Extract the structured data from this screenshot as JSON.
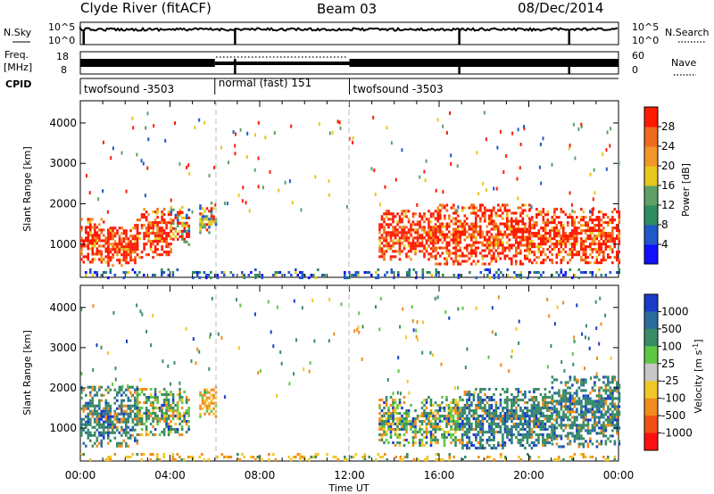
{
  "header": {
    "station": "Clyde River (fitACF)",
    "beam": "Beam 03",
    "date": "08/Dec/2014"
  },
  "nsky_panel": {
    "left_label": "N.Sky",
    "left_ticks": [
      "10^5",
      "10^0"
    ],
    "right_ticks": [
      "10^5",
      "10^0"
    ],
    "right_label": "N.Search"
  },
  "freq_panel": {
    "left_label_1": "Freq.",
    "left_label_2": "[MHz]",
    "left_ticks": [
      "18",
      "8"
    ],
    "right_ticks": [
      "60",
      "0"
    ],
    "right_label": "Nave"
  },
  "cpid": {
    "label": "CPID",
    "segments": [
      {
        "label": "twofsound -3503",
        "start_h": 0,
        "end_h": 6
      },
      {
        "label": "normal (fast) 151",
        "start_h": 6,
        "end_h": 12
      },
      {
        "label": "twofsound -3503",
        "start_h": 12,
        "end_h": 24
      }
    ]
  },
  "x_axis": {
    "label": "Time UT",
    "ticks": [
      "00:00",
      "04:00",
      "08:00",
      "12:00",
      "16:00",
      "20:00",
      "00:00"
    ],
    "range_h": [
      0,
      24
    ]
  },
  "y_axis": {
    "label": "Slant Range [km]",
    "ticks": [
      "1000",
      "2000",
      "3000",
      "4000"
    ],
    "range_km": [
      180,
      4550
    ]
  },
  "power_colorbar": {
    "label": "Power [dB]",
    "ticks": [
      "4",
      "8",
      "12",
      "16",
      "20",
      "24",
      "28"
    ],
    "colors": [
      "#1010ff",
      "#2058c8",
      "#2e8d5e",
      "#5fa066",
      "#e6c81e",
      "#f3962a",
      "#f06a1e",
      "#ff1a00"
    ]
  },
  "velocity_colorbar": {
    "label": "Velocity [m s",
    "label_sup": "-1",
    "label_end": "]",
    "ticks": [
      "1000",
      "500",
      "100",
      "25",
      "-25",
      "-100",
      "-500",
      "-1000"
    ],
    "colors": [
      "#1a3cc8",
      "#2b6e9e",
      "#3a8c64",
      "#5ec845",
      "#c8c8c8",
      "#f0c828",
      "#f08c1e",
      "#f05014",
      "#ff1010"
    ]
  },
  "chart_data": [
    {
      "type": "heatmap",
      "name": "power",
      "x_unit": "hours UT",
      "y_unit": "km",
      "xlim": [
        0,
        24
      ],
      "ylim": [
        180,
        4550
      ],
      "regions": [
        {
          "t0": 0.0,
          "t1": 1.2,
          "r0": 550,
          "r1": 1650,
          "level": "high"
        },
        {
          "t0": 1.2,
          "t1": 2.5,
          "r0": 500,
          "r1": 1500,
          "level": "high"
        },
        {
          "t0": 2.5,
          "t1": 4.0,
          "r0": 700,
          "r1": 1900,
          "level": "high"
        },
        {
          "t0": 4.0,
          "t1": 4.8,
          "r0": 1000,
          "r1": 1950,
          "level": "mid"
        },
        {
          "t0": 5.3,
          "t1": 6.0,
          "r0": 1300,
          "r1": 2050,
          "level": "mid"
        },
        {
          "t0": 13.3,
          "t1": 15.8,
          "r0": 600,
          "r1": 1850,
          "level": "high"
        },
        {
          "t0": 15.8,
          "t1": 20.0,
          "r0": 500,
          "r1": 2000,
          "level": "high"
        },
        {
          "t0": 20.0,
          "t1": 24.0,
          "r0": 550,
          "r1": 1900,
          "level": "high"
        },
        {
          "t0": 0.0,
          "t1": 24.0,
          "r0": 200,
          "r1": 400,
          "level": "low"
        }
      ]
    },
    {
      "type": "heatmap",
      "name": "velocity",
      "x_unit": "hours UT",
      "y_unit": "km",
      "xlim": [
        0,
        24
      ],
      "ylim": [
        180,
        4550
      ],
      "regions": [
        {
          "t0": 0.0,
          "t1": 2.5,
          "r0": 550,
          "r1": 2050,
          "level": "toward"
        },
        {
          "t0": 2.5,
          "t1": 4.8,
          "r0": 850,
          "r1": 2000,
          "level": "mixed"
        },
        {
          "t0": 5.3,
          "t1": 6.0,
          "r0": 1300,
          "r1": 2050,
          "level": "away"
        },
        {
          "t0": 13.3,
          "t1": 17.0,
          "r0": 600,
          "r1": 1800,
          "level": "mixed"
        },
        {
          "t0": 17.0,
          "t1": 21.0,
          "r0": 500,
          "r1": 2000,
          "level": "toward"
        },
        {
          "t0": 21.0,
          "t1": 24.0,
          "r0": 550,
          "r1": 2300,
          "level": "toward"
        },
        {
          "t0": 0.0,
          "t1": 24.0,
          "r0": 200,
          "r1": 380,
          "level": "low"
        }
      ]
    }
  ]
}
